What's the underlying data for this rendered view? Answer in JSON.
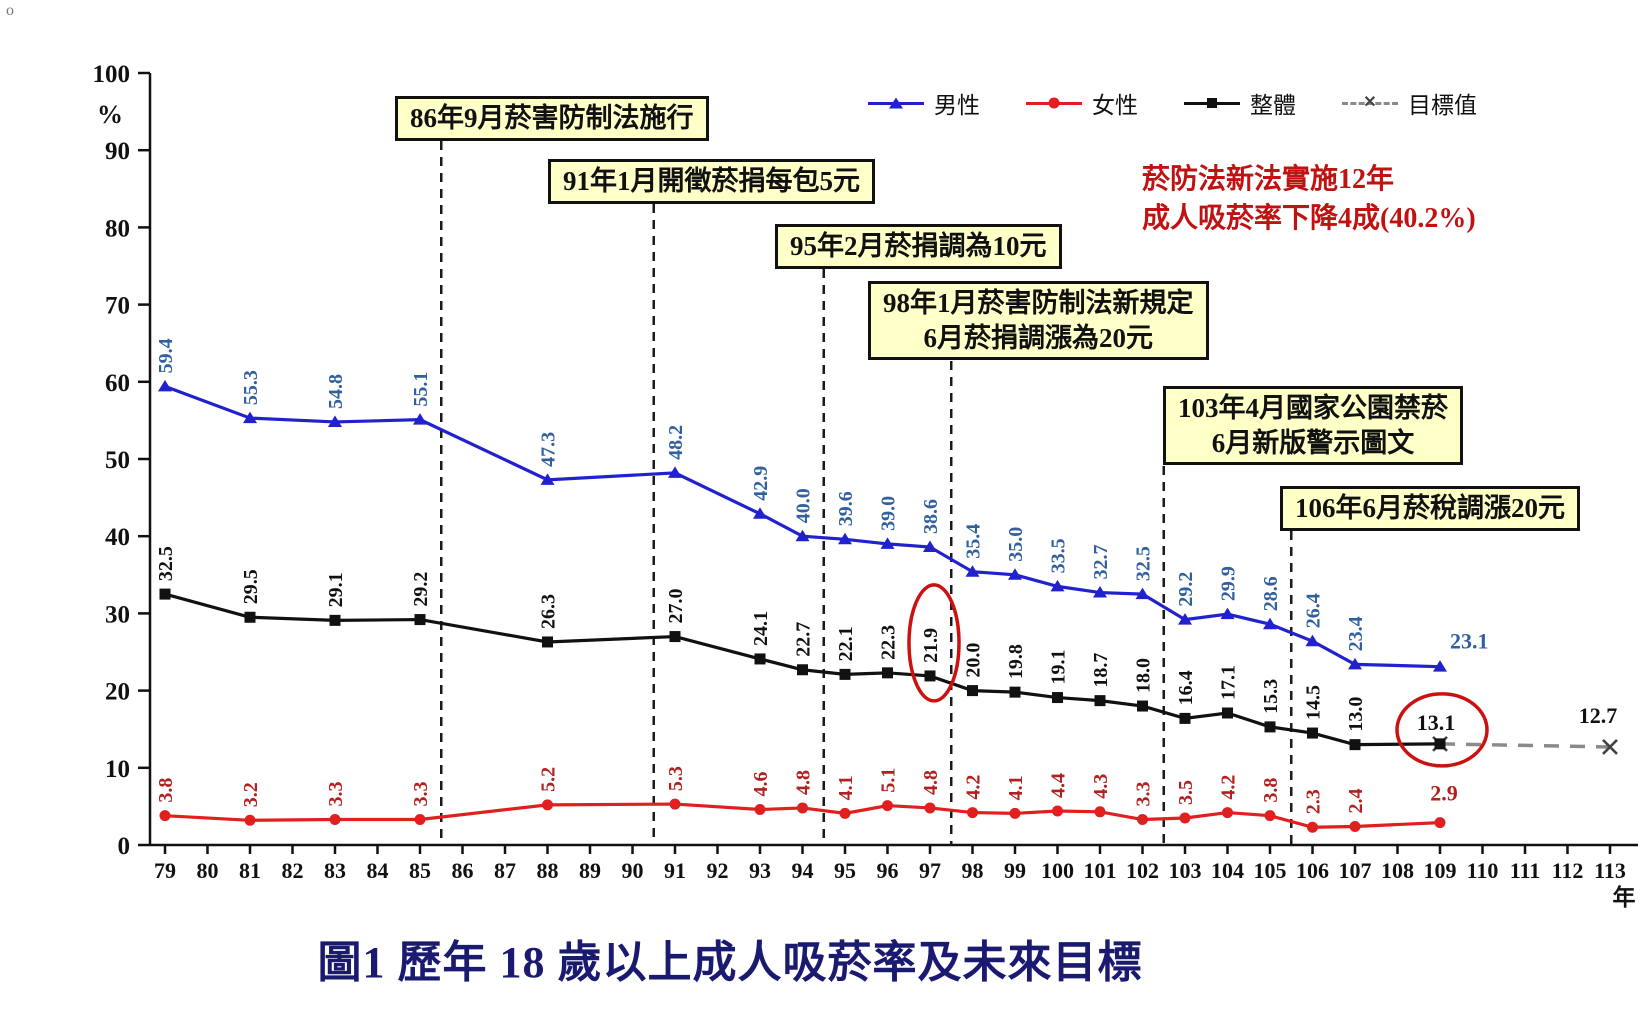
{
  "page": {
    "corner_mark": "o",
    "caption": "圖1  歷年 18 歲以上成人吸菸率及未來目標"
  },
  "colors": {
    "male": "#2121CE",
    "female": "#E01F1F",
    "overall": "#111111",
    "target": "#8A8A8A",
    "male_label": "#31609F",
    "female_label": "#B22020",
    "overall_label": "#111111",
    "box_bg": "#FFFFC8",
    "box_border": "#111111",
    "red_note": "#C11212",
    "caption_color": "#1A1A70",
    "highlight_circle": "#CC1111"
  },
  "legend": {
    "male": "男性",
    "female": "女性",
    "overall": "整體",
    "target": "目標值"
  },
  "annotations": {
    "red_note_line1": "菸防法新法實施12年",
    "red_note_line2": "成人吸菸率下降4成(40.2%)",
    "event_boxes": [
      {
        "lines": [
          "86年9月菸害防制法施行"
        ],
        "line_year": 85.5
      },
      {
        "lines": [
          "91年1月開徵菸捐每包5元"
        ],
        "line_year": 90.5
      },
      {
        "lines": [
          "95年2月菸捐調為10元"
        ],
        "line_year": 94.5
      },
      {
        "lines": [
          "98年1月菸害防制法新規定",
          "6月菸捐調漲為20元"
        ],
        "line_year": 97.5
      },
      {
        "lines": [
          "103年4月國家公園禁菸",
          "6月新版警示圖文"
        ],
        "line_year": 102.5
      },
      {
        "lines": [
          "106年6月菸稅調漲20元"
        ],
        "line_year": 105.5
      }
    ]
  },
  "chart_data": {
    "type": "line",
    "title": "圖1 歷年18歲以上成人吸菸率及未來目標",
    "y_unit": "%",
    "x_unit": "年",
    "ylim": [
      0,
      100
    ],
    "y_ticks": [
      0,
      10,
      20,
      30,
      40,
      50,
      60,
      70,
      80,
      90,
      100
    ],
    "x_axis_years": [
      79,
      80,
      81,
      82,
      83,
      84,
      85,
      86,
      87,
      88,
      89,
      90,
      91,
      92,
      93,
      94,
      95,
      96,
      97,
      98,
      99,
      100,
      101,
      102,
      103,
      104,
      105,
      106,
      107,
      108,
      109,
      110,
      111,
      112,
      113
    ],
    "x": [
      79,
      81,
      83,
      85,
      88,
      91,
      93,
      94,
      95,
      96,
      97,
      98,
      99,
      100,
      101,
      102,
      103,
      104,
      105,
      106,
      107,
      109
    ],
    "series": [
      {
        "key": "male",
        "name": "男性",
        "marker": "triangle",
        "color": "#2121CE",
        "label_color": "#31609F",
        "values": [
          "59.4",
          "55.3",
          "54.8",
          "55.1",
          "47.3",
          "48.2",
          "42.9",
          "40.0",
          "39.6",
          "39.0",
          "38.6",
          "35.4",
          "35.0",
          "33.5",
          "32.7",
          "32.5",
          "29.2",
          "29.9",
          "28.6",
          "26.4",
          "23.4",
          "23.1"
        ]
      },
      {
        "key": "female",
        "name": "女性",
        "marker": "circle",
        "color": "#E01F1F",
        "label_color": "#B22020",
        "values": [
          "3.8",
          "3.2",
          "3.3",
          "3.3",
          "5.2",
          "5.3",
          "4.6",
          "4.8",
          "4.1",
          "5.1",
          "4.8",
          "4.2",
          "4.1",
          "4.4",
          "4.3",
          "3.3",
          "3.5",
          "4.2",
          "3.8",
          "2.3",
          "2.4",
          "2.9"
        ]
      },
      {
        "key": "overall",
        "name": "整體",
        "marker": "square",
        "color": "#111111",
        "label_color": "#111111",
        "values": [
          "32.5",
          "29.5",
          "29.1",
          "29.2",
          "26.3",
          "27.0",
          "24.1",
          "22.7",
          "22.1",
          "22.3",
          "21.9",
          "20.0",
          "19.8",
          "19.1",
          "18.7",
          "18.0",
          "16.4",
          "17.1",
          "15.3",
          "14.5",
          "13.0",
          "13.1"
        ]
      }
    ],
    "target_series": {
      "key": "target",
      "name": "目標值",
      "marker": "x",
      "dashed": true,
      "color": "#8A8A8A",
      "x": [
        109,
        113
      ],
      "values": [
        "13.1",
        "12.7"
      ]
    },
    "circled_points": [
      {
        "series": "overall",
        "year": 97,
        "value": "21.9"
      },
      {
        "series": "overall",
        "year": 109,
        "value": "13.1"
      }
    ],
    "legend_position": "top-right",
    "grid": false
  }
}
